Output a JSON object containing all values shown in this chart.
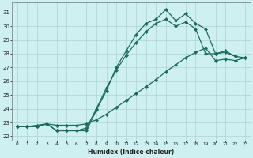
{
  "xlabel": "Humidex (Indice chaleur)",
  "background_color": "#cff0f0",
  "grid_color": "#aad4d0",
  "line_color": "#1a6b5e",
  "xlim": [
    -0.5,
    23.5
  ],
  "ylim": [
    21.7,
    31.7
  ],
  "xticks": [
    0,
    1,
    2,
    3,
    4,
    5,
    6,
    7,
    8,
    9,
    10,
    11,
    12,
    13,
    14,
    15,
    16,
    17,
    18,
    19,
    20,
    21,
    22,
    23
  ],
  "yticks": [
    22,
    23,
    24,
    25,
    26,
    27,
    28,
    29,
    30,
    31
  ],
  "series1_x": [
    0,
    1,
    2,
    3,
    4,
    5,
    6,
    7,
    8,
    9,
    10,
    11,
    12,
    13,
    14,
    15,
    16,
    17,
    18,
    19,
    20,
    21,
    22
  ],
  "series1_y": [
    22.7,
    22.7,
    22.7,
    22.9,
    22.4,
    22.4,
    22.4,
    22.4,
    23.9,
    25.3,
    27.0,
    28.2,
    29.4,
    30.2,
    30.5,
    31.2,
    30.4,
    30.9,
    30.2,
    29.8,
    28.0,
    28.1,
    27.8
  ],
  "series2_x": [
    0,
    1,
    2,
    3,
    4,
    5,
    6,
    7,
    8,
    9,
    10,
    11,
    12,
    13,
    14,
    15,
    16,
    17,
    18,
    19,
    20,
    21,
    22,
    23
  ],
  "series2_y": [
    22.7,
    22.7,
    22.7,
    22.9,
    22.4,
    22.4,
    22.4,
    22.6,
    24.0,
    25.5,
    26.8,
    27.9,
    28.8,
    29.6,
    30.2,
    30.5,
    30.0,
    30.3,
    29.8,
    28.0,
    28.0,
    28.2,
    27.8,
    27.7
  ],
  "series3_x": [
    0,
    1,
    2,
    3,
    4,
    5,
    6,
    7,
    8,
    9,
    10,
    11,
    12,
    13,
    14,
    15,
    16,
    17,
    18,
    19,
    20,
    21,
    22,
    23
  ],
  "series3_y": [
    22.7,
    22.7,
    22.8,
    22.9,
    22.8,
    22.8,
    22.8,
    22.9,
    23.2,
    23.6,
    24.1,
    24.6,
    25.1,
    25.6,
    26.1,
    26.7,
    27.2,
    27.7,
    28.1,
    28.4,
    27.5,
    27.6,
    27.5,
    27.7
  ]
}
